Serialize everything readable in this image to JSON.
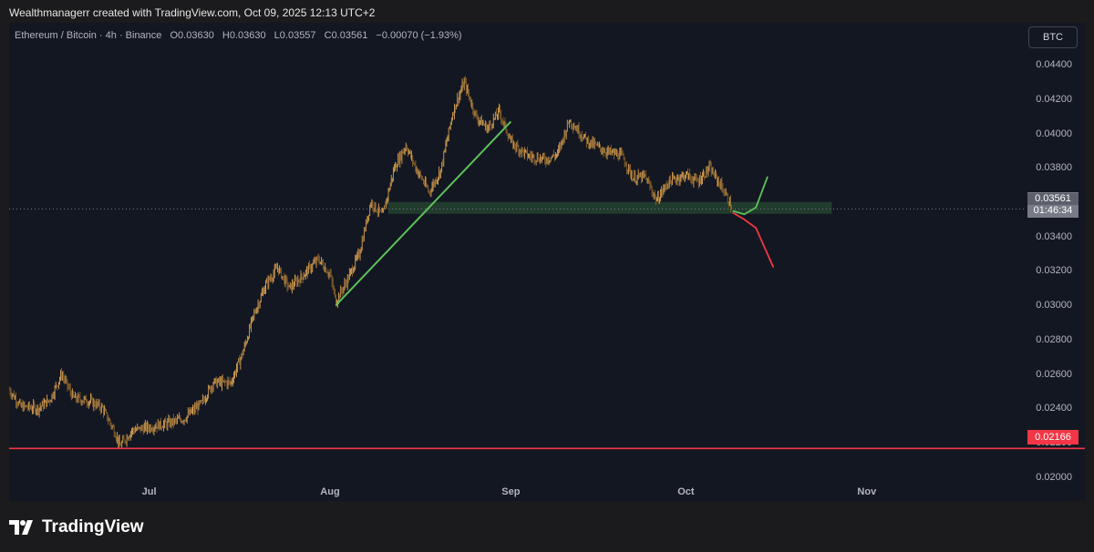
{
  "attribution": "Wealthmanagerr created with TradingView.com, Oct 09, 2025 12:13 UTC+2",
  "legend": {
    "symbol": "Ethereum / Bitcoin · 4h · Binance",
    "open_label": "O",
    "open": "0.03630",
    "high_label": "H",
    "high": "0.03630",
    "low_label": "L",
    "low": "0.03557",
    "close_label": "C",
    "close": "0.03561",
    "change": "−0.00070 (−1.93%)"
  },
  "currency_button": "BTC",
  "price_tag": {
    "price": "0.03561",
    "countdown": "01:46:34"
  },
  "support_tag": "0.02166",
  "brand": "TradingView",
  "colors": {
    "background": "#131722",
    "candle": "#e39b3a",
    "support_zone": "#2e5b36",
    "trendline": "#5cc25a",
    "bull_projection": "#5cc25a",
    "bear_projection": "#f23645",
    "support_line": "#f23645"
  },
  "chart_data": {
    "type": "line",
    "symbol": "ETH/BTC",
    "interval": "4h",
    "exchange": "Binance",
    "x_ticks": [
      "Jul",
      "Aug",
      "Sep",
      "Oct",
      "Nov"
    ],
    "y_ticks": [
      "0.04400",
      "0.04200",
      "0.04000",
      "0.03800",
      "0.03600",
      "0.03400",
      "0.03200",
      "0.03000",
      "0.02800",
      "0.02600",
      "0.02400",
      "0.02200",
      "0.02000"
    ],
    "ylim": [
      0.0195,
      0.0446
    ],
    "price_path": [
      [
        "2025-06-07",
        0.0251
      ],
      [
        "2025-06-09",
        0.0241
      ],
      [
        "2025-06-12",
        0.024
      ],
      [
        "2025-06-14",
        0.0245
      ],
      [
        "2025-06-16",
        0.026
      ],
      [
        "2025-06-18",
        0.0246
      ],
      [
        "2025-06-21",
        0.0244
      ],
      [
        "2025-06-23",
        0.024
      ],
      [
        "2025-06-25",
        0.0227
      ],
      [
        "2025-06-26",
        0.0218
      ],
      [
        "2025-06-28",
        0.0227
      ],
      [
        "2025-07-01",
        0.0229
      ],
      [
        "2025-07-04",
        0.0231
      ],
      [
        "2025-07-07",
        0.0234
      ],
      [
        "2025-07-10",
        0.0243
      ],
      [
        "2025-07-12",
        0.0255
      ],
      [
        "2025-07-15",
        0.0255
      ],
      [
        "2025-07-17",
        0.0272
      ],
      [
        "2025-07-19",
        0.0295
      ],
      [
        "2025-07-21",
        0.0312
      ],
      [
        "2025-07-23",
        0.0322
      ],
      [
        "2025-07-25",
        0.031
      ],
      [
        "2025-07-27",
        0.0316
      ],
      [
        "2025-07-30",
        0.0327
      ],
      [
        "2025-08-01",
        0.0318
      ],
      [
        "2025-08-02",
        0.0302
      ],
      [
        "2025-08-04",
        0.0315
      ],
      [
        "2025-08-06",
        0.033
      ],
      [
        "2025-08-08",
        0.036
      ],
      [
        "2025-08-10",
        0.0352
      ],
      [
        "2025-08-12",
        0.038
      ],
      [
        "2025-08-14",
        0.0393
      ],
      [
        "2025-08-16",
        0.0378
      ],
      [
        "2025-08-18",
        0.0366
      ],
      [
        "2025-08-20",
        0.0379
      ],
      [
        "2025-08-22",
        0.0412
      ],
      [
        "2025-08-24",
        0.043
      ],
      [
        "2025-08-26",
        0.041
      ],
      [
        "2025-08-28",
        0.0403
      ],
      [
        "2025-08-30",
        0.0413
      ],
      [
        "2025-09-01",
        0.0395
      ],
      [
        "2025-09-04",
        0.0387
      ],
      [
        "2025-09-07",
        0.0385
      ],
      [
        "2025-09-09",
        0.0388
      ],
      [
        "2025-09-11",
        0.0408
      ],
      [
        "2025-09-14",
        0.0396
      ],
      [
        "2025-09-17",
        0.039
      ],
      [
        "2025-09-20",
        0.0387
      ],
      [
        "2025-09-22",
        0.0374
      ],
      [
        "2025-09-24",
        0.0375
      ],
      [
        "2025-09-26",
        0.0361
      ],
      [
        "2025-09-28",
        0.0372
      ],
      [
        "2025-10-01",
        0.0376
      ],
      [
        "2025-10-03",
        0.0372
      ],
      [
        "2025-10-05",
        0.038
      ],
      [
        "2025-10-07",
        0.037
      ],
      [
        "2025-10-09",
        0.0356
      ]
    ],
    "annotations": {
      "support_zone": {
        "y_low": 0.0355,
        "y_high": 0.0357,
        "x_start": "2025-08-11",
        "x_end": "2025-10-26"
      },
      "trendline": {
        "from": [
          "2025-08-02",
          0.03
        ],
        "to": [
          "2025-09-01",
          0.0407
        ]
      },
      "support_line": {
        "y": 0.02166
      },
      "current_price_line": {
        "y": 0.03561
      },
      "bull_projection": [
        [
          "2025-10-09",
          0.0355
        ],
        [
          "2025-10-11",
          0.0353
        ],
        [
          "2025-10-13",
          0.0357
        ],
        [
          "2025-10-15",
          0.0375
        ]
      ],
      "bear_projection": [
        [
          "2025-10-09",
          0.0354
        ],
        [
          "2025-10-11",
          0.035
        ],
        [
          "2025-10-13",
          0.0345
        ],
        [
          "2025-10-16",
          0.0322
        ]
      ]
    }
  }
}
